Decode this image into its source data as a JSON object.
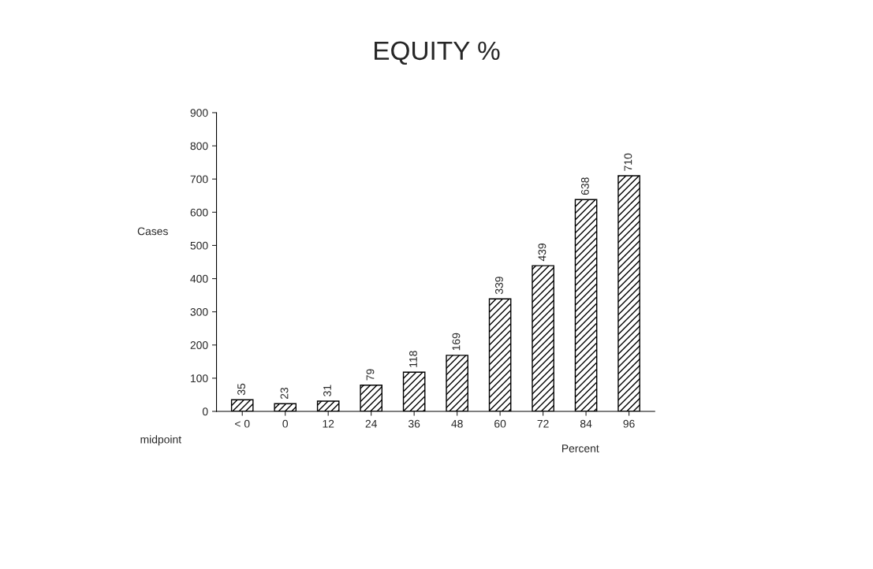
{
  "chart_data": {
    "type": "bar",
    "title": "EQUITY %",
    "ylabel": "Cases",
    "xlabel": "Percent",
    "annotations": [
      "midpoint"
    ],
    "categories": [
      "< 0",
      "0",
      "12",
      "24",
      "36",
      "48",
      "60",
      "72",
      "84",
      "96"
    ],
    "values": [
      35,
      23,
      31,
      79,
      118,
      169,
      339,
      439,
      638,
      710
    ],
    "color": "#000000",
    "ylim": [
      0,
      900
    ],
    "yticks": [
      0,
      100,
      200,
      300,
      400,
      500,
      600,
      700,
      800,
      900
    ],
    "data_labels": true,
    "grid": false,
    "legend": false
  }
}
